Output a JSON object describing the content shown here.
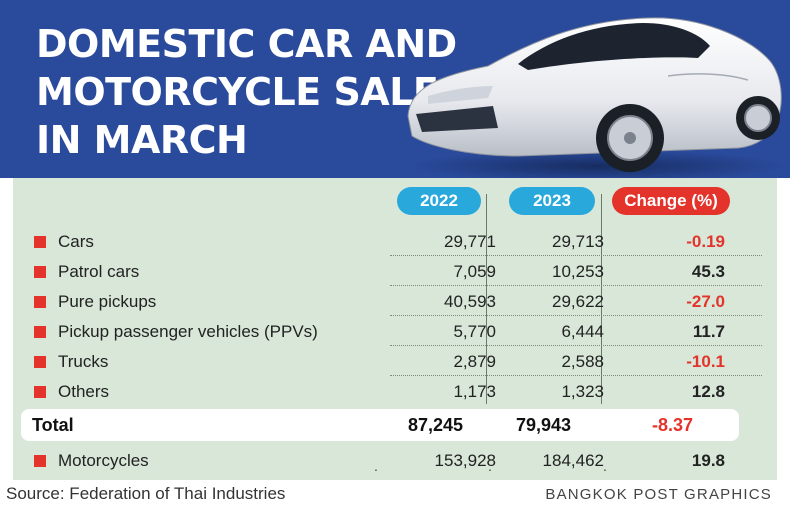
{
  "title": {
    "lines": [
      "DOMESTIC CAR AND",
      "MOTORCYCLE SALES",
      "IN MARCH"
    ]
  },
  "colors": {
    "header_bg": "#2a4a9c",
    "panel_bg": "#d8e7d8",
    "year_pill": "#29a8dc",
    "change_pill": "#e3332b",
    "negative": "#e3332b"
  },
  "chart_data": {
    "type": "table",
    "title": "DOMESTIC CAR AND MOTORCYCLE SALES IN MARCH",
    "columns": [
      "2022",
      "2023",
      "Change (%)"
    ],
    "rows": [
      {
        "label": "Cars",
        "v2022": "29,771",
        "v2023": "29,713",
        "change": "-0.19"
      },
      {
        "label": "Patrol cars",
        "v2022": "7,059",
        "v2023": "10,253",
        "change": "45.3"
      },
      {
        "label": "Pure pickups",
        "v2022": "40,593",
        "v2023": "29,622",
        "change": "-27.0"
      },
      {
        "label": "Pickup passenger vehicles (PPVs)",
        "v2022": "5,770",
        "v2023": "6,444",
        "change": "11.7"
      },
      {
        "label": "Trucks",
        "v2022": "2,879",
        "v2023": "2,588",
        "change": "-10.1"
      },
      {
        "label": "Others",
        "v2022": "1,173",
        "v2023": "1,323",
        "change": "12.8"
      }
    ],
    "total": {
      "label": "Total",
      "v2022": "87,245",
      "v2023": "79,943",
      "change": "-8.37"
    },
    "extra": {
      "label": "Motorcycles",
      "v2022": "153,928",
      "v2023": "184,462",
      "change": "19.8"
    }
  },
  "source": "Source: Federation of Thai Industries",
  "credit": "BANGKOK POST GRAPHICS"
}
